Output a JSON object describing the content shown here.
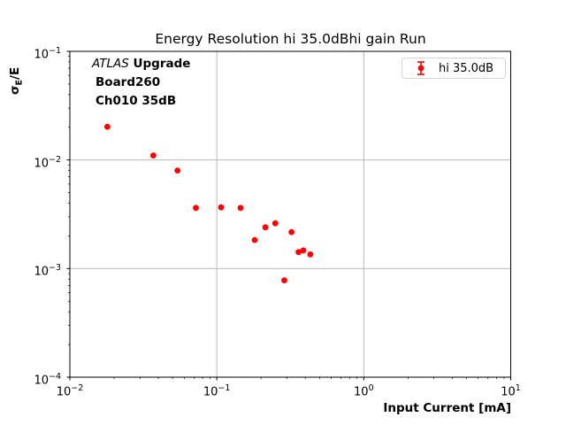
{
  "title": "Energy Resolution hi 35.0dBhi gain Run",
  "annotation": {
    "atlas": "ATLAS",
    "upgrade": " Upgrade",
    "line2": "Board260",
    "line3": "Ch010 35dB"
  },
  "legend": {
    "label": "hi 35.0dB",
    "marker_color": "#ff0000",
    "border_color": "#d5d5d5"
  },
  "axes": {
    "xlabel": "Input Current [mA]",
    "ylabel": {
      "sigma": "σ",
      "sub": "E",
      "rest": "/E"
    },
    "tick_label_base": "10",
    "x_tick_exponents": [
      -2,
      -1,
      0,
      1
    ],
    "y_tick_exponents": [
      -1,
      -2,
      -3,
      -4
    ],
    "grid_color": "#b0b0b0",
    "spine_color": "#000000",
    "tick_color": "#000000"
  },
  "chart_data": {
    "type": "scatter",
    "title": "Energy Resolution hi 35.0dBhi gain Run",
    "xlabel": "Input Current [mA]",
    "ylabel": "σ_E/E",
    "xscale": "log",
    "yscale": "log",
    "xlim": [
      0.01,
      10
    ],
    "ylim": [
      0.0001,
      0.1
    ],
    "grid": true,
    "legend_position": "upper right",
    "series": [
      {
        "name": "hi 35.0dB",
        "color": "#ff0000",
        "marker": "circle-with-errorbar",
        "marker_radius_px": 3.4,
        "points": [
          [
            0.018,
            0.0202
          ],
          [
            0.037,
            0.011
          ],
          [
            0.054,
            0.008
          ],
          [
            0.072,
            0.00362
          ],
          [
            0.107,
            0.00366
          ],
          [
            0.145,
            0.00362
          ],
          [
            0.181,
            0.00183
          ],
          [
            0.214,
            0.0024
          ],
          [
            0.25,
            0.00261
          ],
          [
            0.288,
            0.00078
          ],
          [
            0.322,
            0.00217
          ],
          [
            0.36,
            0.00142
          ],
          [
            0.388,
            0.00147
          ],
          [
            0.433,
            0.00135
          ]
        ]
      }
    ]
  }
}
